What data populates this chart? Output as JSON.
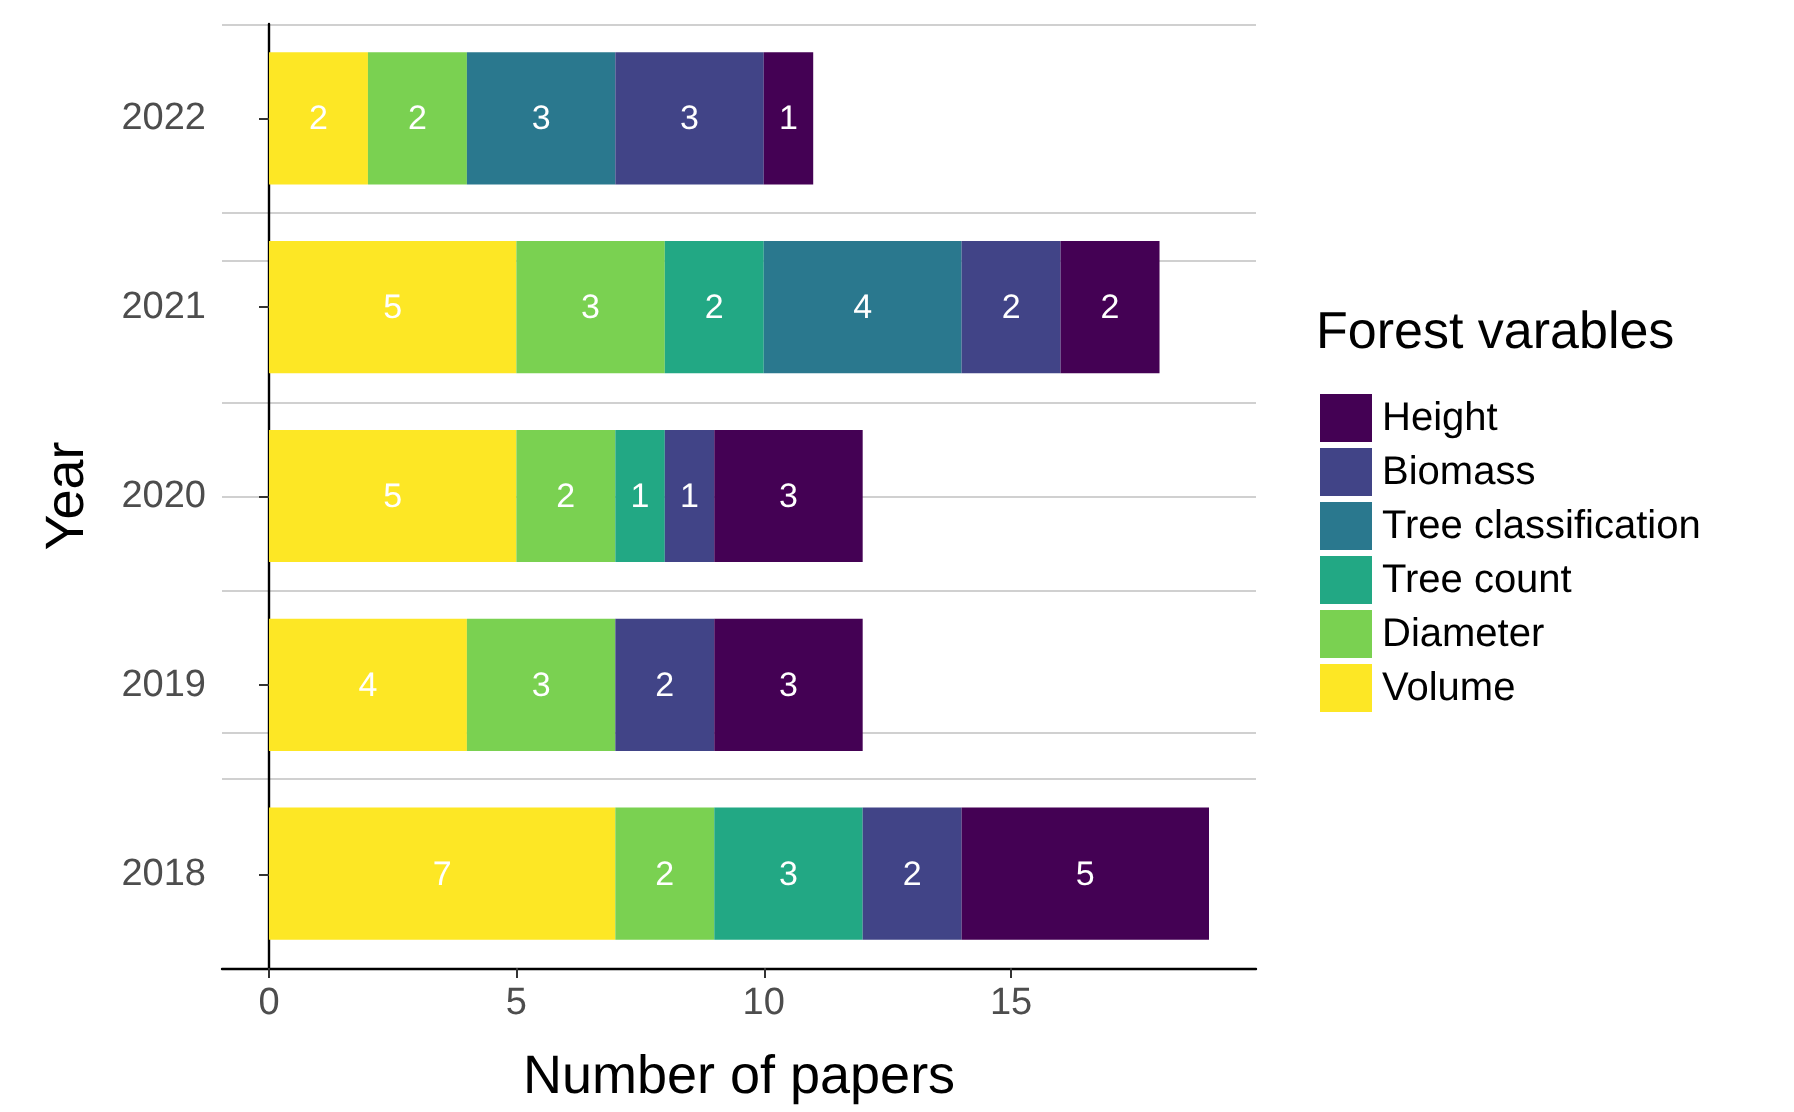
{
  "chart_data": {
    "type": "bar",
    "orientation": "horizontal",
    "stacked": true,
    "xlabel": "Number of papers",
    "ylabel": "Year",
    "legend_title": "Forest varables",
    "categories": [
      "2022",
      "2021",
      "2020",
      "2019",
      "2018"
    ],
    "series": [
      {
        "name": "Volume",
        "color": "#fde725",
        "values": [
          2,
          5,
          5,
          4,
          7
        ]
      },
      {
        "name": "Diameter",
        "color": "#7ad151",
        "values": [
          2,
          3,
          2,
          3,
          2
        ]
      },
      {
        "name": "Tree count",
        "color": "#22a884",
        "values": [
          null,
          2,
          1,
          null,
          3
        ]
      },
      {
        "name": "Tree classification",
        "color": "#2a788e",
        "values": [
          3,
          4,
          null,
          null,
          null
        ]
      },
      {
        "name": "Biomass",
        "color": "#414487",
        "values": [
          3,
          2,
          1,
          2,
          2
        ]
      },
      {
        "name": "Height",
        "color": "#440154",
        "values": [
          1,
          2,
          3,
          3,
          5
        ]
      }
    ],
    "xlim": [
      -0.95,
      19.95
    ],
    "xticks": [
      0,
      5,
      10,
      15
    ],
    "grid": "y",
    "legend": "right",
    "data_labels": true
  }
}
